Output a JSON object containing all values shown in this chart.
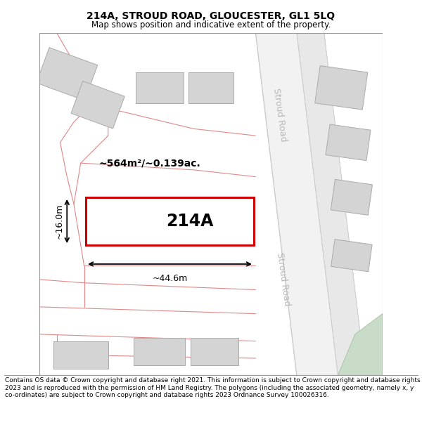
{
  "title": "214A, STROUD ROAD, GLOUCESTER, GL1 5LQ",
  "subtitle": "Map shows position and indicative extent of the property.",
  "footer": "Contains OS data © Crown copyright and database right 2021. This information is subject to Crown copyright and database rights 2023 and is reproduced with the permission of HM Land Registry. The polygons (including the associated geometry, namely x, y co-ordinates) are subject to Crown copyright and database rights 2023 Ordnance Survey 100026316.",
  "map_bg": "#f7f7f7",
  "road_fill": "#eeeeee",
  "road_line_color": "#e08888",
  "building_fill": "#d4d4d4",
  "building_edge": "#aaaaaa",
  "highlight_fill": "#ffffff",
  "highlight_edge": "#cc0000",
  "road_label_color": "#b8b8b8",
  "label_214A": "214A",
  "area_label": "~564m²/~0.139ac.",
  "width_label": "~44.6m",
  "height_label": "~16.0m",
  "stroud_road_label": "Stroud Road",
  "green_area_color": "#c8dcc8",
  "map_border_color": "#bbbbbb",
  "title_fontsize": 10,
  "subtitle_fontsize": 8.5,
  "footer_fontsize": 6.5
}
